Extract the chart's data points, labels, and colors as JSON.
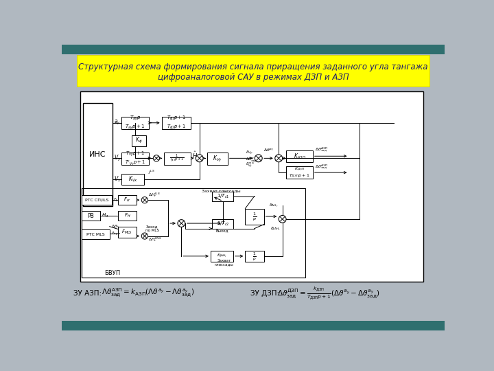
{
  "title_line1": "Структурная схема формирования сигнала приращения заданного угла тангажа",
  "title_line2": "цифроаналоговой САУ в режимах ДЗП и АЗП",
  "title_bg": "#ffff00",
  "title_color": "#1a1a6e",
  "slide_bg": "#b0b8c0",
  "diagram_bg": "#ffffff",
  "formula_left_prefix": "ЗУ АЗП:  ",
  "formula_right_prefix": "ЗУ ДЗП:  "
}
